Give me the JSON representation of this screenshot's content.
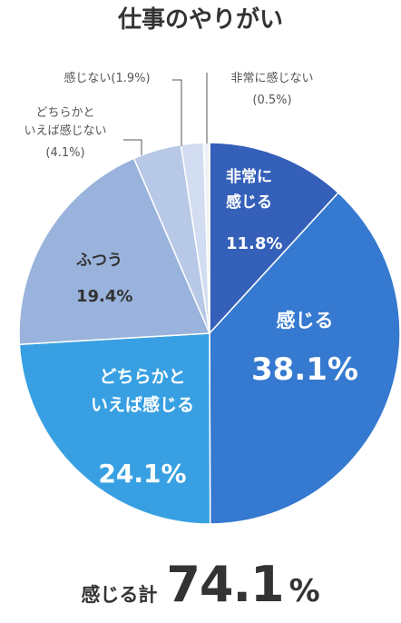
{
  "chart_data": {
    "type": "pie",
    "title": "仕事のやりがい",
    "start_angle_deg": 0,
    "direction": "clockwise",
    "slices": [
      {
        "label_lines": [
          "非常に",
          "感じる"
        ],
        "value": 11.8,
        "value_label": "11.8%",
        "color": "#3560b9"
      },
      {
        "label_lines": [
          "感じる"
        ],
        "value": 38.1,
        "value_label": "38.1%",
        "color": "#3579d0"
      },
      {
        "label_lines": [
          "どちらかと",
          "いえば感じる"
        ],
        "value": 24.1,
        "value_label": "24.1%",
        "color": "#38a0e2"
      },
      {
        "label_lines": [
          "ふつう"
        ],
        "value": 19.4,
        "value_label": "19.4%",
        "color": "#99b3dc"
      },
      {
        "label_lines": [
          "どちらかと",
          "いえば感じない"
        ],
        "value": 4.1,
        "value_label": "(4.1%)",
        "color": "#b8c9e7"
      },
      {
        "label_lines": [
          "感じない"
        ],
        "value": 1.9,
        "value_label": "(1.9%)",
        "color": "#d3ddf1"
      },
      {
        "label_lines": [
          "非常に感じない"
        ],
        "value": 0.5,
        "value_label": "(0.5%)",
        "color": "#eef1f8"
      }
    ]
  },
  "total": {
    "label": "感じる計",
    "value": "74.1",
    "unit": "%"
  }
}
